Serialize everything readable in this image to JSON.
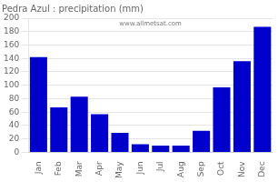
{
  "chart_data": {
    "type": "bar",
    "title": "Pedra Azul : precipitation (mm)",
    "categories": [
      "Jan",
      "Feb",
      "Mar",
      "Apr",
      "May",
      "Jun",
      "Jul",
      "Aug",
      "Sep",
      "Oct",
      "Nov",
      "Dec"
    ],
    "values": [
      142,
      67,
      83,
      57,
      29,
      12,
      10,
      10,
      32,
      97,
      136,
      187
    ],
    "color": "#0000cc",
    "ylim": [
      0,
      200
    ],
    "yticks": [
      0,
      20,
      40,
      60,
      80,
      100,
      120,
      140,
      160,
      180,
      200
    ],
    "grid": true,
    "annotations": [
      "www.allmetsat.com"
    ]
  }
}
